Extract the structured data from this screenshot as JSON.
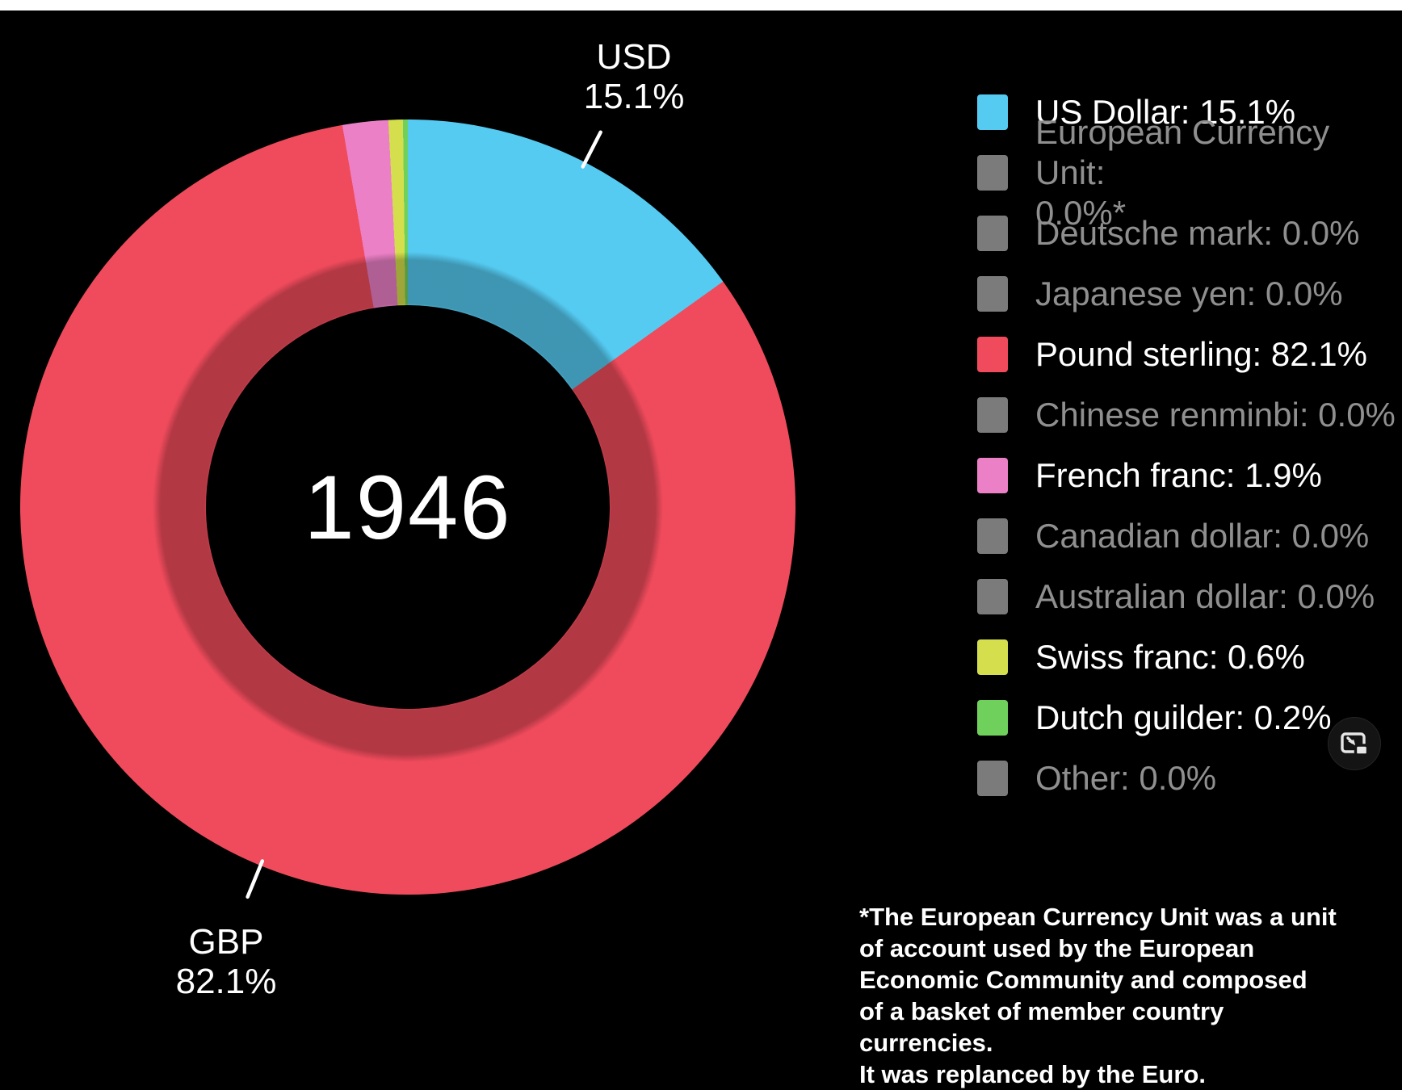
{
  "page": {
    "background_color": "#000000",
    "top_strip_color": "#ffffff",
    "dim_text_color": "#8f8f8f",
    "dim_swatch_color": "#7b7b7b"
  },
  "chart_data": {
    "type": "pie",
    "style": "donut",
    "center_label": "1946",
    "legend_position": "right",
    "start_angle_deg": 0,
    "direction": "clockwise",
    "slices": [
      {
        "label": "US Dollar",
        "value": 15.1,
        "display": "US Dollar: 15.1%",
        "color": "#55cbf2",
        "active": true
      },
      {
        "label": "European Currency Unit",
        "value": 0.0,
        "display": "European Currency Unit:\n0.0%*",
        "color": "#7b7b7b",
        "active": false
      },
      {
        "label": "Deutsche mark",
        "value": 0.0,
        "display": "Deutsche mark: 0.0%",
        "color": "#7b7b7b",
        "active": false
      },
      {
        "label": "Japanese yen",
        "value": 0.0,
        "display": "Japanese yen: 0.0%",
        "color": "#7b7b7b",
        "active": false
      },
      {
        "label": "Pound sterling",
        "value": 82.1,
        "display": "Pound sterling: 82.1%",
        "color": "#f04b5c",
        "active": true
      },
      {
        "label": "Chinese renminbi",
        "value": 0.0,
        "display": "Chinese renminbi: 0.0%",
        "color": "#7b7b7b",
        "active": false
      },
      {
        "label": "French franc",
        "value": 1.9,
        "display": "French franc: 1.9%",
        "color": "#ec80c6",
        "active": true
      },
      {
        "label": "Canadian dollar",
        "value": 0.0,
        "display": "Canadian dollar: 0.0%",
        "color": "#7b7b7b",
        "active": false
      },
      {
        "label": "Australian dollar",
        "value": 0.0,
        "display": "Australian dollar: 0.0%",
        "color": "#7b7b7b",
        "active": false
      },
      {
        "label": "Swiss franc",
        "value": 0.6,
        "display": "Swiss franc: 0.6%",
        "color": "#d5df4d",
        "active": true
      },
      {
        "label": "Dutch guilder",
        "value": 0.2,
        "display": "Dutch guilder: 0.2%",
        "color": "#6fd15c",
        "active": true
      },
      {
        "label": "Other",
        "value": 0.0,
        "display": "Other: 0.0%",
        "color": "#7b7b7b",
        "active": false
      }
    ],
    "callouts": [
      {
        "slice": "US Dollar",
        "line1": "USD",
        "line2": "15.1%"
      },
      {
        "slice": "Pound sterling",
        "line1": "GBP",
        "line2": "82.1%"
      }
    ]
  },
  "footnote": {
    "lines": [
      "*The European Currency Unit was a unit",
      "of account used by the European",
      "Economic Community and composed",
      "of a basket of member country currencies.",
      "It was replanced by the Euro."
    ]
  },
  "icons": {
    "pip": "picture-in-picture-expand-icon"
  }
}
